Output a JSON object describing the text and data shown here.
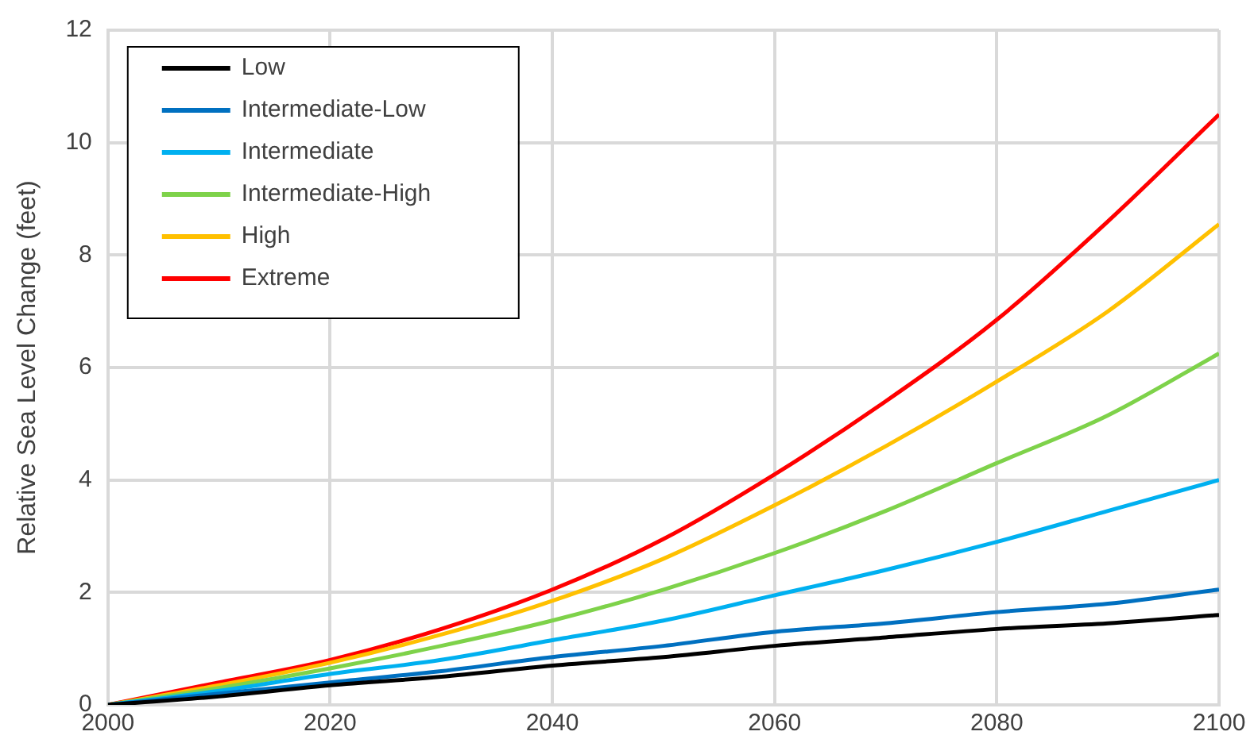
{
  "chart_data": {
    "type": "line",
    "ylabel": "Relative Sea Level Change (feet)",
    "x": [
      2000,
      2010,
      2020,
      2030,
      2040,
      2050,
      2060,
      2070,
      2080,
      2090,
      2100
    ],
    "xlim": [
      2000,
      2100
    ],
    "xticks": [
      2000,
      2020,
      2040,
      2060,
      2080,
      2100
    ],
    "ylim": [
      0,
      12
    ],
    "yticks": [
      0,
      2,
      4,
      6,
      8,
      10,
      12
    ],
    "grid": true,
    "legend": "top left",
    "marker": "none",
    "line_style": "solid",
    "series": [
      {
        "name": "Low",
        "color": "#000000",
        "values": [
          0,
          0.15,
          0.35,
          0.5,
          0.7,
          0.85,
          1.05,
          1.2,
          1.35,
          1.45,
          1.6
        ]
      },
      {
        "name": "Intermediate-Low",
        "color": "#0070c0",
        "values": [
          0,
          0.2,
          0.4,
          0.6,
          0.85,
          1.05,
          1.3,
          1.45,
          1.65,
          1.8,
          2.05
        ]
      },
      {
        "name": "Intermediate",
        "color": "#00b0f0",
        "values": [
          0,
          0.25,
          0.55,
          0.8,
          1.15,
          1.5,
          1.95,
          2.4,
          2.9,
          3.45,
          4.0
        ]
      },
      {
        "name": "Intermediate-High",
        "color": "#7ed24a",
        "values": [
          0,
          0.3,
          0.65,
          1.05,
          1.5,
          2.05,
          2.7,
          3.45,
          4.3,
          5.15,
          6.25
        ]
      },
      {
        "name": "High",
        "color": "#ffc000",
        "values": [
          0,
          0.35,
          0.75,
          1.25,
          1.85,
          2.6,
          3.55,
          4.6,
          5.75,
          7.0,
          8.55
        ]
      },
      {
        "name": "Extreme",
        "color": "#ff0000",
        "values": [
          0,
          0.4,
          0.8,
          1.35,
          2.05,
          2.95,
          4.1,
          5.4,
          6.85,
          8.6,
          10.5
        ]
      }
    ]
  }
}
